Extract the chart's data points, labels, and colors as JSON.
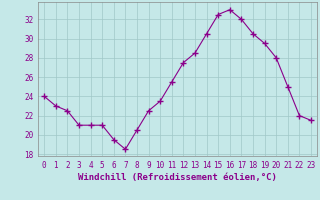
{
  "x": [
    0,
    1,
    2,
    3,
    4,
    5,
    6,
    7,
    8,
    9,
    10,
    11,
    12,
    13,
    14,
    15,
    16,
    17,
    18,
    19,
    20,
    21,
    22,
    23
  ],
  "y": [
    24.0,
    23.0,
    22.5,
    21.0,
    21.0,
    21.0,
    19.5,
    18.5,
    20.5,
    22.5,
    23.5,
    25.5,
    27.5,
    28.5,
    30.5,
    32.5,
    33.0,
    32.0,
    30.5,
    29.5,
    28.0,
    25.0,
    22.0,
    21.5
  ],
  "line_color": "#8b008b",
  "marker": "+",
  "marker_size": 4,
  "bg_color": "#c5e8e8",
  "grid_color": "#a0c8c8",
  "xlabel": "Windchill (Refroidissement éolien,°C)",
  "xlim": [
    -0.5,
    23.5
  ],
  "ylim": [
    17.8,
    33.8
  ],
  "yticks": [
    18,
    20,
    22,
    24,
    26,
    28,
    30,
    32
  ],
  "xticks": [
    0,
    1,
    2,
    3,
    4,
    5,
    6,
    7,
    8,
    9,
    10,
    11,
    12,
    13,
    14,
    15,
    16,
    17,
    18,
    19,
    20,
    21,
    22,
    23
  ],
  "tick_fontsize": 5.5,
  "xlabel_fontsize": 6.5
}
